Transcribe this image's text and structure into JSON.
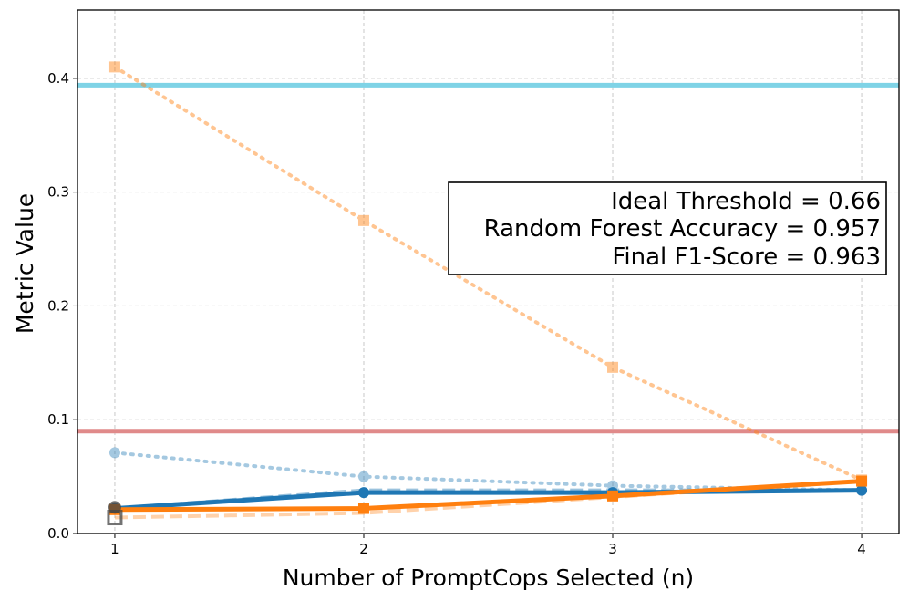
{
  "chart_data": {
    "type": "line",
    "xlabel": "Number of PromptCops Selected (n)",
    "ylabel": "Metric Value",
    "x": [
      1,
      2,
      3,
      4
    ],
    "xlim": [
      0.85,
      4.15
    ],
    "ylim": [
      0,
      0.46
    ],
    "xticks": [
      "1",
      "2",
      "3",
      "4"
    ],
    "yticks": [
      "0.0",
      "0.1",
      "0.2",
      "0.3",
      "0.4"
    ],
    "grid": true,
    "series": [
      {
        "values": [
          0.41,
          0.275,
          0.146,
          0.047
        ],
        "color": "#ff7f0e",
        "style": "dotted",
        "marker": "square",
        "alpha": 0.45,
        "width": 4
      },
      {
        "values": [
          0.071,
          0.05,
          0.042,
          0.038
        ],
        "color": "#1f77b4",
        "style": "dotted",
        "marker": "circle",
        "alpha": 0.4,
        "width": 4
      },
      {
        "values": [
          0.022,
          0.038,
          0.038,
          0.038
        ],
        "color": "#1f77b4",
        "style": "dashed",
        "marker": "none",
        "alpha": 0.45,
        "width": 4
      },
      {
        "values": [
          0.014,
          0.018,
          0.032,
          0.046
        ],
        "color": "#ff7f0e",
        "style": "dashed",
        "marker": "none",
        "alpha": 0.35,
        "width": 4
      },
      {
        "values": [
          0.022,
          0.036,
          0.036,
          0.038
        ],
        "color": "#1f77b4",
        "style": "solid",
        "marker": "circle",
        "alpha": 1,
        "width": 5
      },
      {
        "values": [
          0.021,
          0.022,
          0.033,
          0.046
        ],
        "color": "#ff7f0e",
        "style": "solid",
        "marker": "square",
        "alpha": 1,
        "width": 5
      }
    ],
    "hlines": [
      {
        "y": 0.394,
        "color": "#7fd3e6"
      },
      {
        "y": 0.09,
        "color": "#e08a8a"
      }
    ],
    "annotation": {
      "lines": [
        "Ideal Threshold = 0.66",
        "Random Forest Accuracy = 0.957",
        "Final F1-Score = 0.963"
      ],
      "placement": "center-right"
    }
  }
}
